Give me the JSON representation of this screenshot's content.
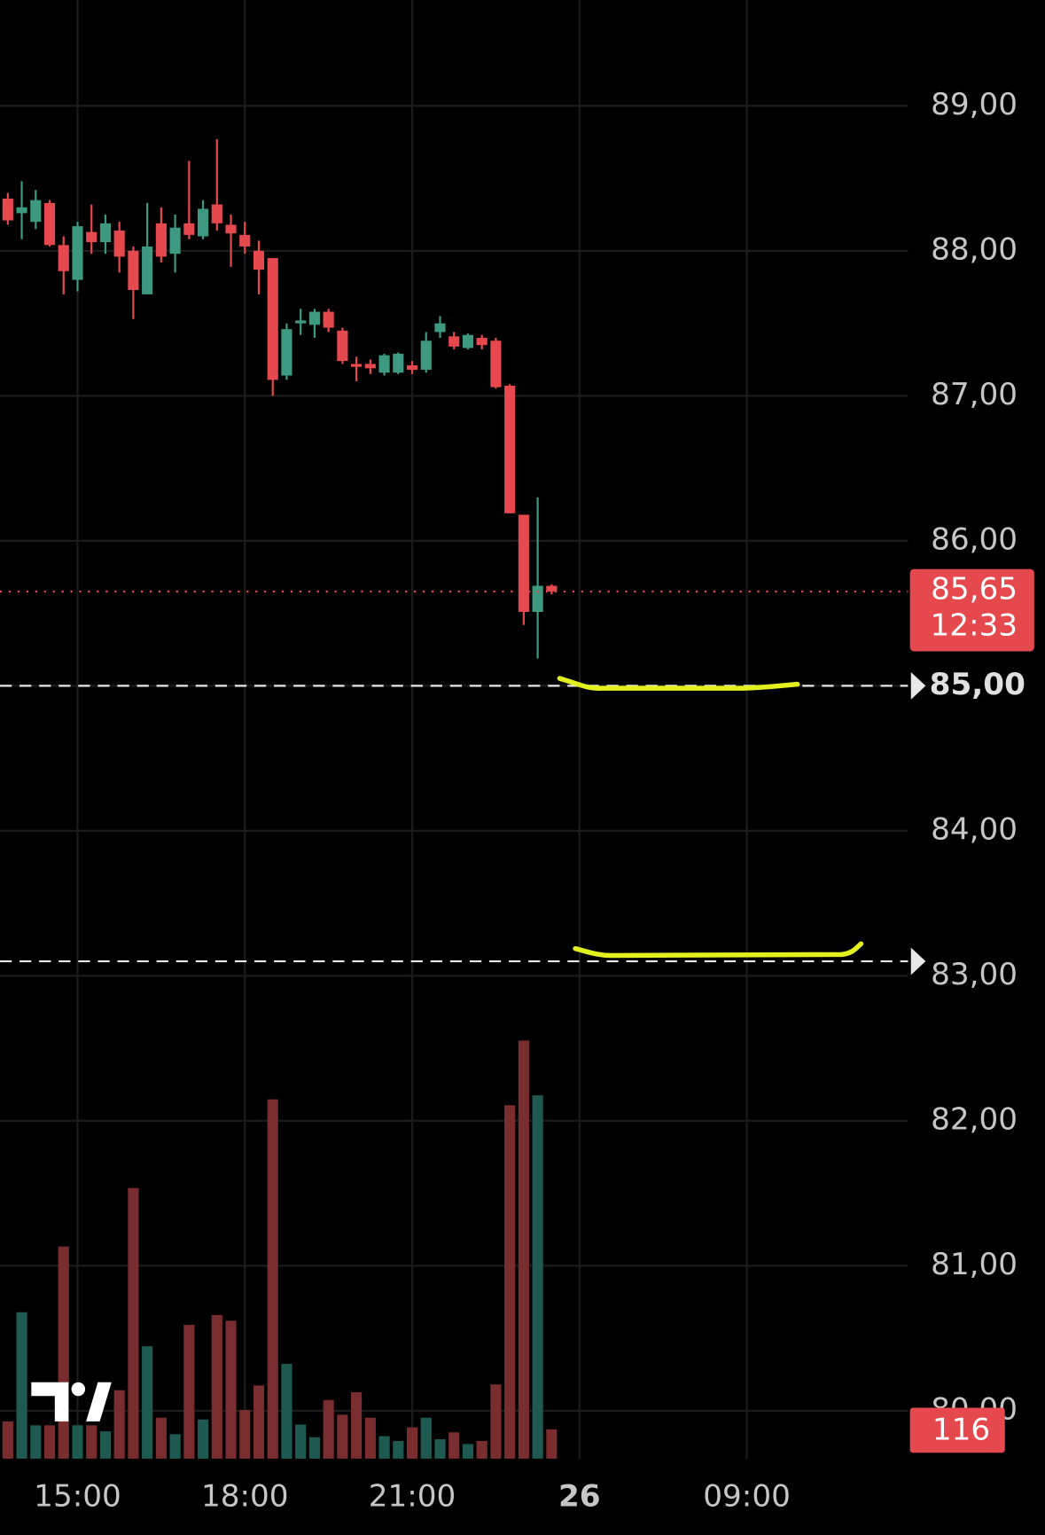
{
  "chart_data": {
    "type": "candlestick",
    "open": [
      88.36,
      88.26,
      88.2,
      88.33,
      88.04,
      87.8,
      88.13,
      88.06,
      88.14,
      88.0,
      87.7,
      88.19,
      87.98,
      88.19,
      88.1,
      88.32,
      88.18,
      88.11,
      88.0,
      87.95,
      87.14,
      87.5,
      87.49,
      87.58,
      87.45,
      87.22,
      87.22,
      87.16,
      87.16,
      87.21,
      87.18,
      87.44,
      87.41,
      87.33,
      87.4,
      87.38,
      87.07,
      86.18,
      85.51,
      85.69
    ],
    "high": [
      88.4,
      88.48,
      88.42,
      88.35,
      88.1,
      88.2,
      88.32,
      88.25,
      88.2,
      88.03,
      88.33,
      88.3,
      88.25,
      88.62,
      88.35,
      88.77,
      88.25,
      88.2,
      88.07,
      87.95,
      87.5,
      87.6,
      87.6,
      87.6,
      87.47,
      87.27,
      87.25,
      87.29,
      87.3,
      87.24,
      87.44,
      87.55,
      87.44,
      87.43,
      87.42,
      87.4,
      87.08,
      86.18,
      86.3,
      85.7
    ],
    "low": [
      88.18,
      88.08,
      88.15,
      88.03,
      87.7,
      87.72,
      87.98,
      87.98,
      87.85,
      87.53,
      87.7,
      87.92,
      87.85,
      88.08,
      88.08,
      88.14,
      87.89,
      87.98,
      87.7,
      87.0,
      87.11,
      87.42,
      87.4,
      87.44,
      87.22,
      87.1,
      87.15,
      87.14,
      87.15,
      87.15,
      87.16,
      87.4,
      87.32,
      87.32,
      87.32,
      87.05,
      86.19,
      85.42,
      85.19,
      85.63
    ],
    "close": [
      88.21,
      88.3,
      88.35,
      88.04,
      87.86,
      88.17,
      88.06,
      88.19,
      87.96,
      87.73,
      88.03,
      87.96,
      88.16,
      88.11,
      88.29,
      88.19,
      88.12,
      88.03,
      87.87,
      87.11,
      87.46,
      87.52,
      87.58,
      87.47,
      87.24,
      87.2,
      87.19,
      87.28,
      87.29,
      87.18,
      87.38,
      87.5,
      87.34,
      87.42,
      87.35,
      87.06,
      86.19,
      85.51,
      85.69,
      85.65
    ],
    "volume": [
      147,
      580,
      132,
      132,
      840,
      132,
      132,
      108,
      271,
      1072,
      445,
      162,
      97,
      530,
      155,
      569,
      546,
      193,
      290,
      1423,
      375,
      135,
      85,
      232,
      174,
      263,
      162,
      89,
      70,
      124,
      162,
      77,
      104,
      58,
      70,
      294,
      1400,
      1656,
      1439,
      116
    ],
    "vlim": [
      0,
      1900
    ],
    "ylim": [
      79.67,
      89.73
    ],
    "yticks": [
      {
        "value": 89,
        "label": "89,00"
      },
      {
        "value": 88,
        "label": "88,00"
      },
      {
        "value": 87,
        "label": "87,00"
      },
      {
        "value": 86,
        "label": "86,00"
      },
      {
        "value": 85,
        "label": "85,00"
      },
      {
        "value": 84,
        "label": "84,00"
      },
      {
        "value": 83,
        "label": "83,00"
      },
      {
        "value": 82,
        "label": "82,00"
      },
      {
        "value": 81,
        "label": "81,00"
      },
      {
        "value": 80,
        "label": "80,00"
      }
    ],
    "x_labels": [
      "15:00",
      "18:00",
      "21:00",
      "26",
      "09:00"
    ],
    "price_lines": [
      85,
      83.1
    ],
    "last_close_label": "85,65",
    "countdown": "12:33",
    "up_color": "#3d9a80",
    "down_color": "#e5484d",
    "up_volume_color": "#1f5a52",
    "down_volume_color": "#7a2d2f",
    "grid": true
  }
}
